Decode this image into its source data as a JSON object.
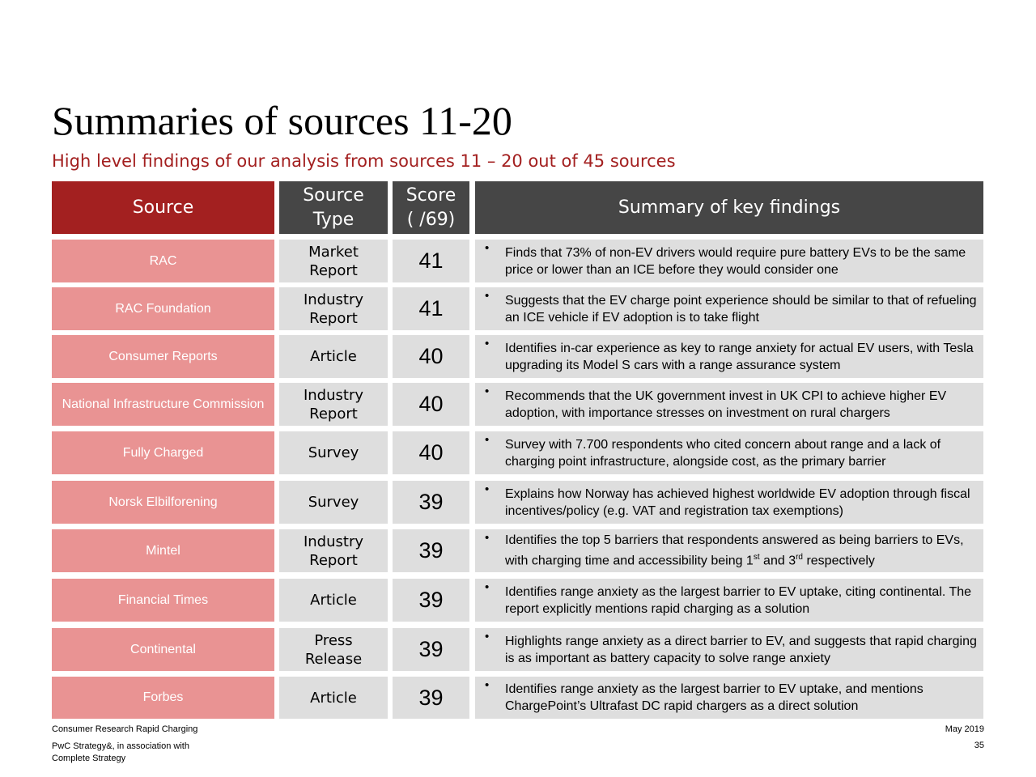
{
  "title": "Summaries of sources 11-20",
  "subtitle": "High level findings of our analysis from sources 11 – 20 out of 45 sources",
  "table": {
    "headers": {
      "source": "Source",
      "type_line1": "Source",
      "type_line2": "Type",
      "score_line1": "Score",
      "score_line2": "( /69)",
      "summary": "Summary of key findings"
    },
    "rows": [
      {
        "source": "RAC",
        "type_line1": "Market",
        "type_line2": "Report",
        "score": "41",
        "summary": "Finds that 73% of non-EV drivers would require pure battery EVs to be the same price or lower than an ICE before they would consider one"
      },
      {
        "source": "RAC Foundation",
        "type_line1": "Industry",
        "type_line2": "Report",
        "score": "41",
        "summary": "Suggests that the EV charge point experience should be similar to that of refueling an ICE vehicle if EV adoption is to take flight"
      },
      {
        "source": "Consumer Reports",
        "type_line1": "Article",
        "type_line2": "",
        "score": "40",
        "summary": "Identifies in-car experience as key to range anxiety for actual EV users, with Tesla upgrading its Model S cars with a range assurance system"
      },
      {
        "source": "National Infrastructure Commission",
        "type_line1": "Industry",
        "type_line2": "Report",
        "score": "40",
        "summary": "Recommends that the UK government invest in UK CPI to achieve higher EV adoption, with importance stresses on investment on rural chargers"
      },
      {
        "source": "Fully Charged",
        "type_line1": "Survey",
        "type_line2": "",
        "score": "40",
        "summary": "Survey with 7.700 respondents who cited concern about range and a lack of charging point infrastructure, alongside cost, as the primary barrier"
      },
      {
        "source": "Norsk Elbilforening",
        "type_line1": "Survey",
        "type_line2": "",
        "score": "39",
        "summary": "Explains how Norway has achieved highest worldwide EV adoption through fiscal incentives/policy (e.g. VAT and registration tax exemptions)"
      },
      {
        "source": "Mintel",
        "type_line1": "Industry",
        "type_line2": "Report",
        "score": "39",
        "summary_a": "Identifies the top 5 barriers that respondents answered as being barriers to EVs, with charging time and accessibility being 1",
        "summary_sup1": "st",
        "summary_b": " and 3",
        "summary_sup2": "rd",
        "summary_c": " respectively"
      },
      {
        "source": "Financial Times",
        "type_line1": "Article",
        "type_line2": "",
        "score": "39",
        "summary": "Identifies range anxiety as the largest barrier to EV uptake, citing continental. The report explicitly mentions rapid charging as a solution"
      },
      {
        "source": "Continental",
        "type_line1": "Press",
        "type_line2": "Release",
        "score": "39",
        "summary": "Highlights range anxiety as a direct barrier to EV, and suggests that rapid charging is as important as battery capacity to solve range anxiety"
      },
      {
        "source": "Forbes",
        "type_line1": "Article",
        "type_line2": "",
        "score": "39",
        "summary": "Identifies range anxiety as the largest barrier to EV uptake, and mentions ChargePoint’s Ultrafast DC rapid chargers as a direct solution"
      }
    ]
  },
  "bullet_char": "•",
  "footer": {
    "doc_name": "Consumer Research Rapid Charging",
    "firm_line1": "PwC Strategy&, in association with",
    "firm_line2": "Complete Strategy",
    "date": "May 2019",
    "page_number": "35"
  }
}
